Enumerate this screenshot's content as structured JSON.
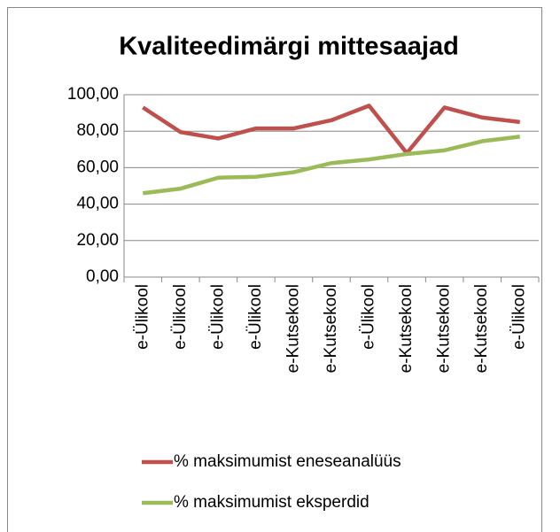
{
  "chart_data": {
    "type": "line",
    "title": "Kvaliteedimärgi mittesaajad",
    "categories": [
      "e-Ülikool",
      "e-Ülikool",
      "e-Ülikool",
      "e-Ülikool",
      "e-Kutsekool",
      "e-Kutsekool",
      "e-Ülikool",
      "e-Kutsekool",
      "e-Kutsekool",
      "e-Kutsekool",
      "e-Ülikool"
    ],
    "series": [
      {
        "name": "% maksimumist eneseanalüüs",
        "color": "#c0504d",
        "values": [
          93,
          79.5,
          76,
          81.5,
          81.5,
          86,
          94,
          68,
          93,
          87.5,
          85
        ]
      },
      {
        "name": "% maksimumist eksperdid",
        "color": "#9bbb59",
        "values": [
          46,
          48.5,
          54.5,
          55,
          57.5,
          62.5,
          64.5,
          67.5,
          69.5,
          74.5,
          77
        ]
      }
    ],
    "ylim": [
      0,
      100
    ],
    "yticks": [
      {
        "value": 0,
        "label": "0,00"
      },
      {
        "value": 20,
        "label": "20,00"
      },
      {
        "value": 40,
        "label": "40,00"
      },
      {
        "value": 60,
        "label": "60,00"
      },
      {
        "value": 80,
        "label": "80,00"
      },
      {
        "value": 100,
        "label": "100,00"
      }
    ],
    "grid": true,
    "legend": "bottom"
  }
}
